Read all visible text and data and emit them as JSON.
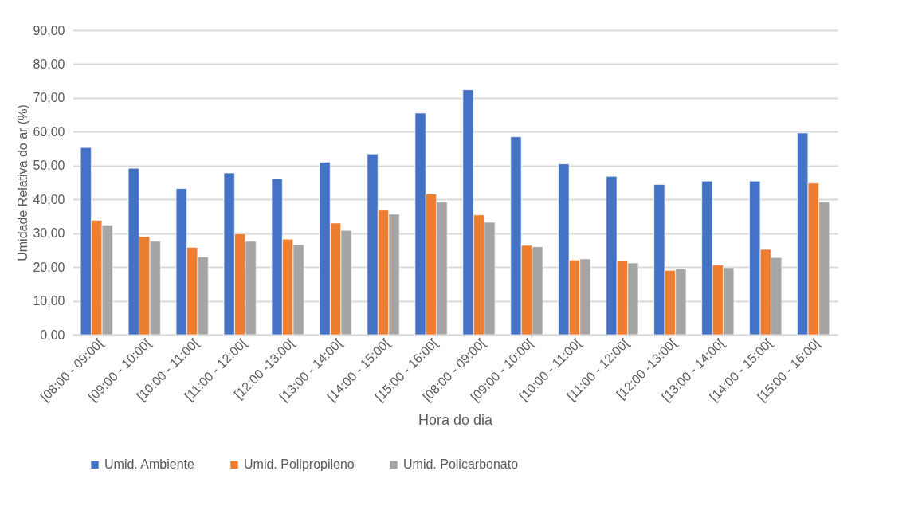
{
  "chart_data": {
    "type": "bar",
    "xlabel": "Hora do dia",
    "ylabel": "Umidade Relativa do ar (%)",
    "categories": [
      "[08:00 - 09:00[",
      "[09:00 - 10:00[",
      "[10:00 - 11:00[",
      "[11:00 - 12:00[",
      "[12:00 -13:00[",
      "[13:00 - 14:00[",
      "[14:00 - 15:00[",
      "[15:00 - 16:00[",
      "[08:00 - 09:00[",
      "[09:00 - 10:00[",
      "[10:00 - 11:00[",
      "[11:00 - 12:00[",
      "[12:00 -13:00[",
      "[13:00 - 14:00[",
      "[14:00 - 15:00[",
      "[15:00 - 16:00["
    ],
    "series": [
      {
        "name": "Umid. Ambiente",
        "color": "#4472c4",
        "values": [
          55.3,
          49.2,
          43.2,
          47.8,
          46.2,
          51.0,
          53.4,
          65.5,
          72.4,
          58.5,
          50.5,
          46.8,
          44.4,
          45.4,
          45.4,
          59.6
        ]
      },
      {
        "name": "Umid. Polipropileno",
        "color": "#ed7d31",
        "values": [
          33.8,
          29.0,
          25.8,
          29.8,
          28.2,
          33.0,
          36.8,
          41.6,
          35.4,
          26.4,
          22.0,
          21.8,
          19.0,
          20.6,
          25.2,
          44.8
        ]
      },
      {
        "name": "Umid. Policarbonato",
        "color": "#a5a5a5",
        "values": [
          32.4,
          27.6,
          23.0,
          27.6,
          26.6,
          30.8,
          35.6,
          39.2,
          33.2,
          26.0,
          22.4,
          21.2,
          19.5,
          19.8,
          22.8,
          39.2
        ]
      }
    ],
    "ylim": [
      0,
      90
    ],
    "yticks": [
      {
        "value": 0,
        "label": "0,00"
      },
      {
        "value": 10,
        "label": "10,00"
      },
      {
        "value": 20,
        "label": "20,00"
      },
      {
        "value": 30,
        "label": "30,00"
      },
      {
        "value": 40,
        "label": "40,00"
      },
      {
        "value": 50,
        "label": "50,00"
      },
      {
        "value": 60,
        "label": "60,00"
      },
      {
        "value": 70,
        "label": "70,00"
      },
      {
        "value": 80,
        "label": "80,00"
      },
      {
        "value": 90,
        "label": "90,00"
      }
    ],
    "grid": "y",
    "legend": "bottom"
  }
}
